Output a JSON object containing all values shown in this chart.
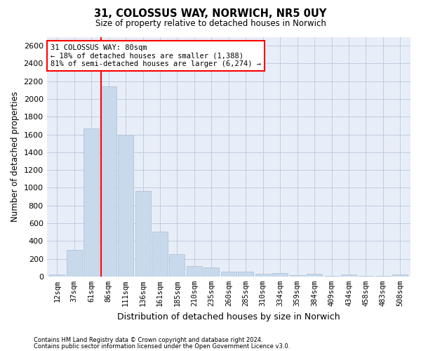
{
  "title": "31, COLOSSUS WAY, NORWICH, NR5 0UY",
  "subtitle": "Size of property relative to detached houses in Norwich",
  "xlabel": "Distribution of detached houses by size in Norwich",
  "ylabel": "Number of detached properties",
  "bar_color": "#c8d9ec",
  "bar_edge_color": "#a8bdd4",
  "grid_color": "#c0cce0",
  "background_color": "#e8eef8",
  "vline_color": "red",
  "annotation_line1": "31 COLOSSUS WAY: 80sqm",
  "annotation_line2": "← 18% of detached houses are smaller (1,388)",
  "annotation_line3": "81% of semi-detached houses are larger (6,274) →",
  "annotation_box_color": "white",
  "annotation_box_edge": "red",
  "footnote1": "Contains HM Land Registry data © Crown copyright and database right 2024.",
  "footnote2": "Contains public sector information licensed under the Open Government Licence v3.0.",
  "categories": [
    "12sqm",
    "37sqm",
    "61sqm",
    "86sqm",
    "111sqm",
    "136sqm",
    "161sqm",
    "185sqm",
    "210sqm",
    "235sqm",
    "260sqm",
    "285sqm",
    "310sqm",
    "334sqm",
    "359sqm",
    "384sqm",
    "409sqm",
    "434sqm",
    "458sqm",
    "483sqm",
    "508sqm"
  ],
  "values": [
    25,
    300,
    1670,
    2140,
    1595,
    960,
    505,
    250,
    120,
    100,
    50,
    50,
    30,
    40,
    15,
    30,
    10,
    25,
    10,
    5,
    25
  ],
  "ylim": [
    0,
    2700
  ],
  "yticks": [
    0,
    200,
    400,
    600,
    800,
    1000,
    1200,
    1400,
    1600,
    1800,
    2000,
    2200,
    2400,
    2600
  ],
  "vline_index": 2.55
}
